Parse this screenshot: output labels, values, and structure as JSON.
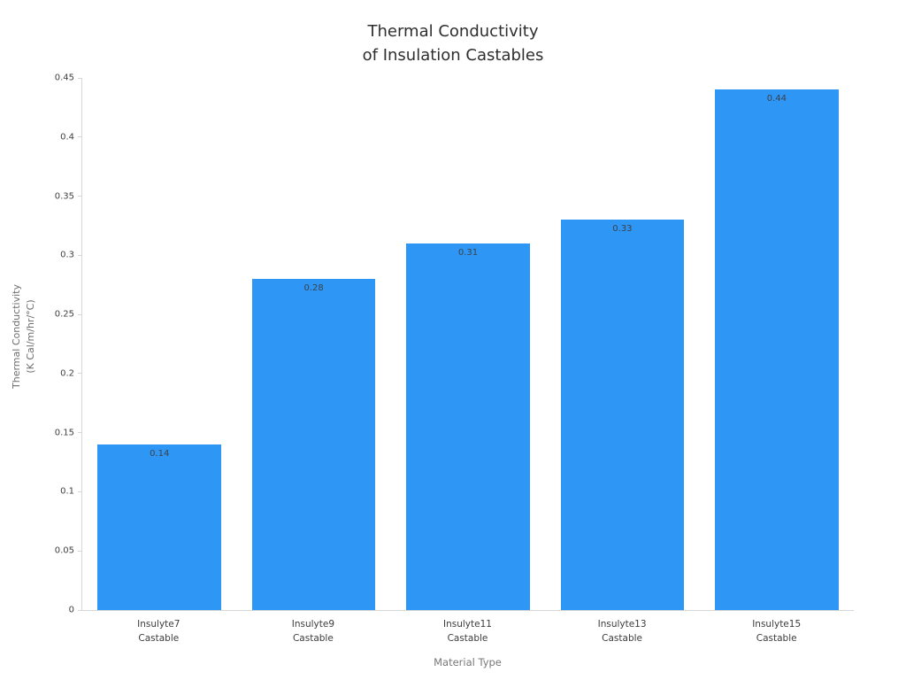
{
  "chart_data": {
    "type": "bar",
    "title": "Thermal Conductivity of Insulation Castables",
    "title_lines": [
      "Thermal Conductivity",
      "of Insulation Castables"
    ],
    "xlabel": "Material Type",
    "ylabel": "Thermal Conductivity (K Cal/m/hr/°C)",
    "ylabel_lines": [
      "Thermal Conductivity",
      "(K Cal/m/hr/°C)"
    ],
    "categories": [
      "Insulyte7 Castable",
      "Insulyte9 Castable",
      "Insulyte11 Castable",
      "Insulyte13 Castable",
      "Insulyte15 Castable"
    ],
    "category_lines": [
      [
        "Insulyte7",
        "Castable"
      ],
      [
        "Insulyte9",
        "Castable"
      ],
      [
        "Insulyte11",
        "Castable"
      ],
      [
        "Insulyte13",
        "Castable"
      ],
      [
        "Insulyte15",
        "Castable"
      ]
    ],
    "values": [
      0.14,
      0.28,
      0.31,
      0.33,
      0.44
    ],
    "value_labels": [
      "0.14",
      "0.28",
      "0.31",
      "0.33",
      "0.44"
    ],
    "ylim": [
      0,
      0.45
    ],
    "ytick_values": [
      0,
      0.05,
      0.1,
      0.15,
      0.2,
      0.25,
      0.3,
      0.35,
      0.4,
      0.45
    ],
    "ytick_labels": [
      "0",
      "0.05",
      "0.1",
      "0.15",
      "0.2",
      "0.25",
      "0.3",
      "0.35",
      "0.4",
      "0.45"
    ],
    "grid": false,
    "legend": "none",
    "bar_color": "#2E96F5",
    "value_label_color": "#3d4148",
    "axis_color": "#d6d6d6"
  }
}
